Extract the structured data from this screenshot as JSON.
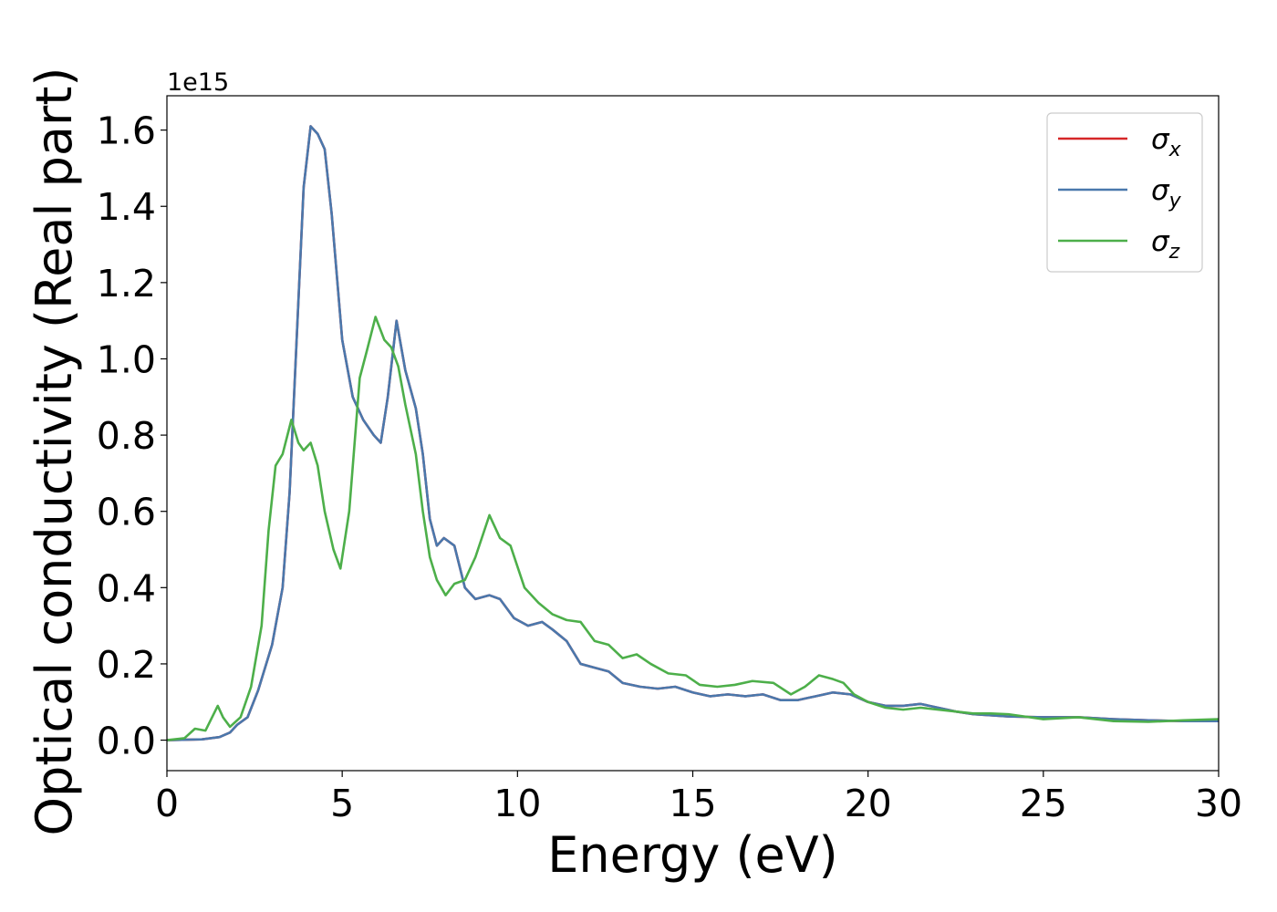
{
  "chart_data": {
    "type": "line",
    "xlabel": "Energy (eV)",
    "ylabel": "Optical conductivity (Real part)",
    "offset_text": "1e15",
    "xlim": [
      0,
      30
    ],
    "ylim": [
      -0.08,
      1.69
    ],
    "x_ticks": [
      0,
      5,
      10,
      15,
      20,
      25,
      30
    ],
    "y_ticks": [
      0.0,
      0.2,
      0.4,
      0.6,
      0.8,
      1.0,
      1.2,
      1.4,
      1.6
    ],
    "y_tick_labels": [
      "0.0",
      "0.2",
      "0.4",
      "0.6",
      "0.8",
      "1.0",
      "1.2",
      "1.4",
      "1.6"
    ],
    "legend_position": "top-right",
    "grid": false,
    "series": [
      {
        "name": "σx",
        "label_base": "σ",
        "label_sub": "x",
        "color": "#d62728",
        "points": [
          [
            0,
            0
          ],
          [
            1,
            0.002
          ],
          [
            1.5,
            0.008
          ],
          [
            1.8,
            0.02
          ],
          [
            2.0,
            0.04
          ],
          [
            2.3,
            0.06
          ],
          [
            2.6,
            0.13
          ],
          [
            3.0,
            0.25
          ],
          [
            3.3,
            0.4
          ],
          [
            3.5,
            0.65
          ],
          [
            3.7,
            1.05
          ],
          [
            3.9,
            1.45
          ],
          [
            4.1,
            1.61
          ],
          [
            4.3,
            1.59
          ],
          [
            4.5,
            1.55
          ],
          [
            4.7,
            1.38
          ],
          [
            5.0,
            1.05
          ],
          [
            5.3,
            0.9
          ],
          [
            5.6,
            0.84
          ],
          [
            5.9,
            0.8
          ],
          [
            6.1,
            0.78
          ],
          [
            6.3,
            0.9
          ],
          [
            6.55,
            1.1
          ],
          [
            6.8,
            0.97
          ],
          [
            7.1,
            0.87
          ],
          [
            7.3,
            0.75
          ],
          [
            7.5,
            0.58
          ],
          [
            7.7,
            0.51
          ],
          [
            7.9,
            0.53
          ],
          [
            8.2,
            0.51
          ],
          [
            8.5,
            0.4
          ],
          [
            8.8,
            0.37
          ],
          [
            9.2,
            0.38
          ],
          [
            9.5,
            0.37
          ],
          [
            9.9,
            0.32
          ],
          [
            10.3,
            0.3
          ],
          [
            10.7,
            0.31
          ],
          [
            11.0,
            0.29
          ],
          [
            11.4,
            0.26
          ],
          [
            11.8,
            0.2
          ],
          [
            12.2,
            0.19
          ],
          [
            12.6,
            0.18
          ],
          [
            13.0,
            0.15
          ],
          [
            13.5,
            0.14
          ],
          [
            14.0,
            0.135
          ],
          [
            14.5,
            0.14
          ],
          [
            15.0,
            0.125
          ],
          [
            15.5,
            0.115
          ],
          [
            16.0,
            0.12
          ],
          [
            16.5,
            0.115
          ],
          [
            17.0,
            0.12
          ],
          [
            17.5,
            0.105
          ],
          [
            18.0,
            0.105
          ],
          [
            18.5,
            0.115
          ],
          [
            19.0,
            0.125
          ],
          [
            19.5,
            0.12
          ],
          [
            20.0,
            0.1
          ],
          [
            20.5,
            0.09
          ],
          [
            21.0,
            0.09
          ],
          [
            21.5,
            0.095
          ],
          [
            22.0,
            0.085
          ],
          [
            22.5,
            0.075
          ],
          [
            23.0,
            0.068
          ],
          [
            23.5,
            0.065
          ],
          [
            24.0,
            0.062
          ],
          [
            25.0,
            0.06
          ],
          [
            26.0,
            0.06
          ],
          [
            27.0,
            0.055
          ],
          [
            28.0,
            0.052
          ],
          [
            29.0,
            0.05
          ],
          [
            30.0,
            0.05
          ]
        ]
      },
      {
        "name": "σy",
        "label_base": "σ",
        "label_sub": "y",
        "color": "#4a78ac",
        "points": [
          [
            0,
            0
          ],
          [
            1,
            0.002
          ],
          [
            1.5,
            0.008
          ],
          [
            1.8,
            0.02
          ],
          [
            2.0,
            0.04
          ],
          [
            2.3,
            0.06
          ],
          [
            2.6,
            0.13
          ],
          [
            3.0,
            0.25
          ],
          [
            3.3,
            0.4
          ],
          [
            3.5,
            0.65
          ],
          [
            3.7,
            1.05
          ],
          [
            3.9,
            1.45
          ],
          [
            4.1,
            1.61
          ],
          [
            4.3,
            1.59
          ],
          [
            4.5,
            1.55
          ],
          [
            4.7,
            1.38
          ],
          [
            5.0,
            1.05
          ],
          [
            5.3,
            0.9
          ],
          [
            5.6,
            0.84
          ],
          [
            5.9,
            0.8
          ],
          [
            6.1,
            0.78
          ],
          [
            6.3,
            0.9
          ],
          [
            6.55,
            1.1
          ],
          [
            6.8,
            0.97
          ],
          [
            7.1,
            0.87
          ],
          [
            7.3,
            0.75
          ],
          [
            7.5,
            0.58
          ],
          [
            7.7,
            0.51
          ],
          [
            7.9,
            0.53
          ],
          [
            8.2,
            0.51
          ],
          [
            8.5,
            0.4
          ],
          [
            8.8,
            0.37
          ],
          [
            9.2,
            0.38
          ],
          [
            9.5,
            0.37
          ],
          [
            9.9,
            0.32
          ],
          [
            10.3,
            0.3
          ],
          [
            10.7,
            0.31
          ],
          [
            11.0,
            0.29
          ],
          [
            11.4,
            0.26
          ],
          [
            11.8,
            0.2
          ],
          [
            12.2,
            0.19
          ],
          [
            12.6,
            0.18
          ],
          [
            13.0,
            0.15
          ],
          [
            13.5,
            0.14
          ],
          [
            14.0,
            0.135
          ],
          [
            14.5,
            0.14
          ],
          [
            15.0,
            0.125
          ],
          [
            15.5,
            0.115
          ],
          [
            16.0,
            0.12
          ],
          [
            16.5,
            0.115
          ],
          [
            17.0,
            0.12
          ],
          [
            17.5,
            0.105
          ],
          [
            18.0,
            0.105
          ],
          [
            18.5,
            0.115
          ],
          [
            19.0,
            0.125
          ],
          [
            19.5,
            0.12
          ],
          [
            20.0,
            0.1
          ],
          [
            20.5,
            0.09
          ],
          [
            21.0,
            0.09
          ],
          [
            21.5,
            0.095
          ],
          [
            22.0,
            0.085
          ],
          [
            22.5,
            0.075
          ],
          [
            23.0,
            0.068
          ],
          [
            23.5,
            0.065
          ],
          [
            24.0,
            0.062
          ],
          [
            25.0,
            0.06
          ],
          [
            26.0,
            0.06
          ],
          [
            27.0,
            0.055
          ],
          [
            28.0,
            0.052
          ],
          [
            29.0,
            0.05
          ],
          [
            30.0,
            0.05
          ]
        ]
      },
      {
        "name": "σz",
        "label_base": "σ",
        "label_sub": "z",
        "color": "#4daf4a",
        "points": [
          [
            0,
            0
          ],
          [
            0.5,
            0.005
          ],
          [
            0.8,
            0.03
          ],
          [
            1.1,
            0.025
          ],
          [
            1.45,
            0.09
          ],
          [
            1.6,
            0.06
          ],
          [
            1.8,
            0.035
          ],
          [
            2.1,
            0.06
          ],
          [
            2.4,
            0.14
          ],
          [
            2.7,
            0.3
          ],
          [
            2.9,
            0.55
          ],
          [
            3.1,
            0.72
          ],
          [
            3.3,
            0.75
          ],
          [
            3.55,
            0.84
          ],
          [
            3.75,
            0.78
          ],
          [
            3.9,
            0.76
          ],
          [
            4.1,
            0.78
          ],
          [
            4.3,
            0.72
          ],
          [
            4.5,
            0.6
          ],
          [
            4.75,
            0.5
          ],
          [
            4.95,
            0.45
          ],
          [
            5.2,
            0.6
          ],
          [
            5.5,
            0.95
          ],
          [
            5.7,
            1.02
          ],
          [
            5.95,
            1.11
          ],
          [
            6.2,
            1.05
          ],
          [
            6.4,
            1.03
          ],
          [
            6.6,
            0.98
          ],
          [
            6.8,
            0.88
          ],
          [
            7.1,
            0.75
          ],
          [
            7.3,
            0.6
          ],
          [
            7.5,
            0.48
          ],
          [
            7.7,
            0.42
          ],
          [
            7.95,
            0.38
          ],
          [
            8.2,
            0.41
          ],
          [
            8.5,
            0.42
          ],
          [
            8.8,
            0.48
          ],
          [
            9.2,
            0.59
          ],
          [
            9.5,
            0.53
          ],
          [
            9.8,
            0.51
          ],
          [
            10.2,
            0.4
          ],
          [
            10.6,
            0.36
          ],
          [
            11.0,
            0.33
          ],
          [
            11.4,
            0.315
          ],
          [
            11.8,
            0.31
          ],
          [
            12.2,
            0.26
          ],
          [
            12.6,
            0.25
          ],
          [
            13.0,
            0.215
          ],
          [
            13.4,
            0.225
          ],
          [
            13.8,
            0.2
          ],
          [
            14.3,
            0.175
          ],
          [
            14.8,
            0.17
          ],
          [
            15.2,
            0.145
          ],
          [
            15.7,
            0.14
          ],
          [
            16.2,
            0.145
          ],
          [
            16.7,
            0.155
          ],
          [
            17.3,
            0.15
          ],
          [
            17.8,
            0.12
          ],
          [
            18.2,
            0.14
          ],
          [
            18.6,
            0.17
          ],
          [
            19.0,
            0.16
          ],
          [
            19.3,
            0.15
          ],
          [
            19.6,
            0.12
          ],
          [
            20.0,
            0.1
          ],
          [
            20.5,
            0.085
          ],
          [
            21.0,
            0.08
          ],
          [
            21.5,
            0.085
          ],
          [
            22.0,
            0.08
          ],
          [
            22.5,
            0.075
          ],
          [
            23.0,
            0.07
          ],
          [
            23.5,
            0.07
          ],
          [
            24.0,
            0.068
          ],
          [
            25.0,
            0.055
          ],
          [
            26.0,
            0.06
          ],
          [
            27.0,
            0.05
          ],
          [
            28.0,
            0.048
          ],
          [
            29.0,
            0.052
          ],
          [
            30.0,
            0.055
          ]
        ]
      }
    ]
  }
}
